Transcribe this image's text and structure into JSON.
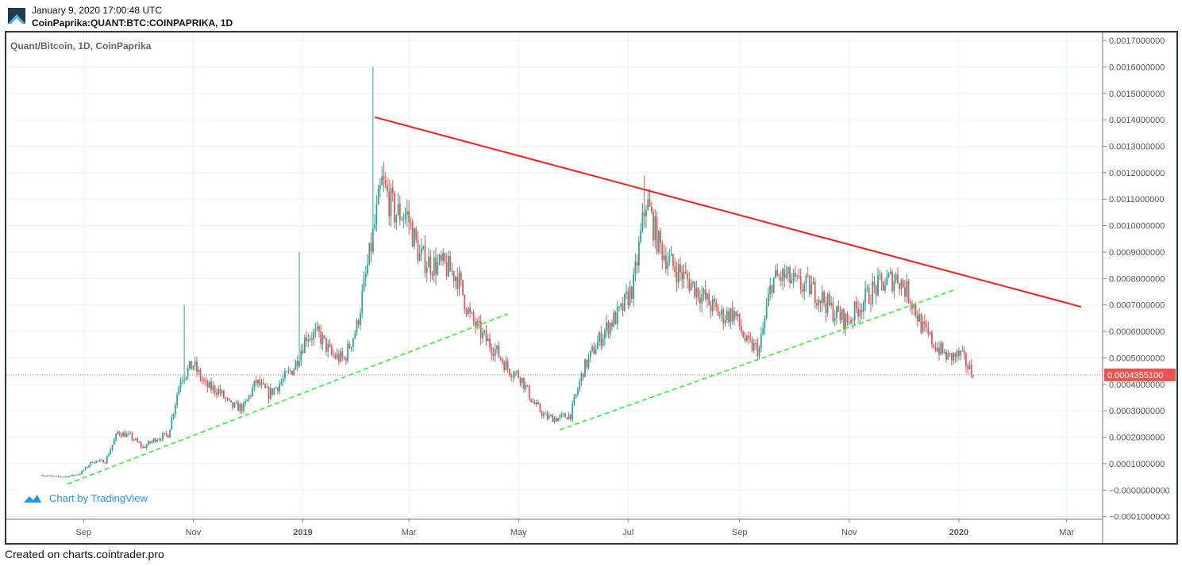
{
  "header": {
    "timestamp": "January 9, 2020 17:00:48 UTC",
    "symbol": "CoinPaprika:QUANT:BTC:COINPAPRIKA, 1D"
  },
  "footer": "Created on charts.cointrader.pro",
  "watermark": "Chart by TradingView",
  "colors": {
    "up": "#26a69a",
    "down": "#ef5350",
    "resistance": "#ff1a1a",
    "support": "#33ee33",
    "frame": "#1f3b4d"
  },
  "chart_data": {
    "type": "candlestick",
    "title": "Quant/Bitcoin, 1D, CoinPaprika",
    "x_ticks": [
      {
        "date": "2018-09-01",
        "label": "Sep"
      },
      {
        "date": "2018-11-01",
        "label": "Nov"
      },
      {
        "date": "2019-01-01",
        "label": "2019"
      },
      {
        "date": "2019-03-01",
        "label": "Mar"
      },
      {
        "date": "2019-05-01",
        "label": "May"
      },
      {
        "date": "2019-07-01",
        "label": "Jul"
      },
      {
        "date": "2019-09-01",
        "label": "Sep"
      },
      {
        "date": "2019-11-01",
        "label": "Nov"
      },
      {
        "date": "2020-01-01",
        "label": "2020"
      },
      {
        "date": "2020-03-01",
        "label": "Mar"
      }
    ],
    "y_ticks": [
      "0.0017000000",
      "0.0016000000",
      "0.0015000000",
      "0.0014000000",
      "0.0013000000",
      "0.0012000000",
      "0.0011000000",
      "0.0010000000",
      "0.0009000000",
      "0.0008000000",
      "0.0007000000",
      "0.0006000000",
      "0.0005000000",
      "0.0004000000",
      "0.0003000000",
      "0.0002000000",
      "0.0001000000",
      "−0.0000000000",
      "−0.0001000000"
    ],
    "ylim": [
      -0.00011,
      0.00173
    ],
    "xlim": [
      "2018-07-20",
      "2020-03-21"
    ],
    "grid": true,
    "last_price": "0.0004355100",
    "last_price_value": 0.00043551,
    "weekly_close_dates": [
      "2018-08-09",
      "2018-08-16",
      "2018-08-23",
      "2018-08-30",
      "2018-09-06",
      "2018-09-13",
      "2018-09-20",
      "2018-09-27",
      "2018-10-04",
      "2018-10-11",
      "2018-10-18",
      "2018-10-25",
      "2018-11-01",
      "2018-11-08",
      "2018-11-15",
      "2018-11-22",
      "2018-11-29",
      "2018-12-06",
      "2018-12-13",
      "2018-12-20",
      "2018-12-27",
      "2019-01-03",
      "2019-01-10",
      "2019-01-17",
      "2019-01-24",
      "2019-01-31",
      "2019-02-07",
      "2019-02-14",
      "2019-02-21",
      "2019-02-28",
      "2019-03-07",
      "2019-03-14",
      "2019-03-21",
      "2019-03-28",
      "2019-04-04",
      "2019-04-11",
      "2019-04-18",
      "2019-04-25",
      "2019-05-02",
      "2019-05-09",
      "2019-05-16",
      "2019-05-23",
      "2019-05-30",
      "2019-06-06",
      "2019-06-13",
      "2019-06-20",
      "2019-06-27",
      "2019-07-04",
      "2019-07-11",
      "2019-07-18",
      "2019-07-25",
      "2019-08-01",
      "2019-08-08",
      "2019-08-15",
      "2019-08-22",
      "2019-08-29",
      "2019-09-05",
      "2019-09-12",
      "2019-09-19",
      "2019-09-26",
      "2019-10-03",
      "2019-10-10",
      "2019-10-17",
      "2019-10-24",
      "2019-10-31",
      "2019-11-07",
      "2019-11-14",
      "2019-11-21",
      "2019-11-28",
      "2019-12-05",
      "2019-12-12",
      "2019-12-19",
      "2019-12-26",
      "2020-01-02",
      "2020-01-09"
    ],
    "weekly_close": [
      5.7e-05,
      5.1e-05,
      5.1e-05,
      6.3e-05,
      0.000109,
      0.000109,
      0.000219,
      0.000204,
      0.000161,
      0.000194,
      0.00021,
      0.000424,
      0.000475,
      0.000392,
      0.000377,
      0.000317,
      0.000311,
      0.000409,
      0.000363,
      0.000409,
      0.000464,
      0.000586,
      0.000586,
      0.00051,
      0.000494,
      0.000617,
      0.000883,
      0.00116,
      0.00105,
      0.00104,
      0.000883,
      0.000853,
      0.000846,
      0.000807,
      0.000654,
      0.000583,
      0.000531,
      0.000461,
      0.00043,
      0.000332,
      0.000277,
      0.000271,
      0.000286,
      0.000454,
      0.000546,
      0.000623,
      0.000675,
      0.000776,
      0.001097,
      0.000929,
      0.000853,
      0.000807,
      0.00076,
      0.000705,
      0.000659,
      0.000669,
      0.000552,
      0.000531,
      0.000793,
      0.000807,
      0.000776,
      0.000767,
      0.000724,
      0.000669,
      0.000638,
      0.0007,
      0.000755,
      0.000785,
      0.000807,
      0.00073,
      0.000608,
      0.000546,
      0.000501,
      0.00051,
      0.00043551
    ],
    "notable_highs": [
      {
        "date": "2018-10-27",
        "value": 0.0007
      },
      {
        "date": "2018-12-30",
        "value": 0.0009
      },
      {
        "date": "2019-02-09",
        "value": 0.0016
      },
      {
        "date": "2019-07-10",
        "value": 0.00119
      }
    ],
    "trendlines": [
      {
        "kind": "resistance",
        "style": "solid",
        "from": {
          "date": "2019-02-10",
          "value": 0.00141
        },
        "to": {
          "date": "2020-03-09",
          "value": 0.000693
        }
      },
      {
        "kind": "support",
        "style": "dashed",
        "from": {
          "date": "2018-08-23",
          "value": 2.3e-05
        },
        "to": {
          "date": "2019-04-25",
          "value": 0.000666
        }
      },
      {
        "kind": "support",
        "style": "dashed",
        "from": {
          "date": "2019-05-24",
          "value": 0.000228
        },
        "to": {
          "date": "2019-12-30",
          "value": 0.000758
        }
      }
    ]
  }
}
